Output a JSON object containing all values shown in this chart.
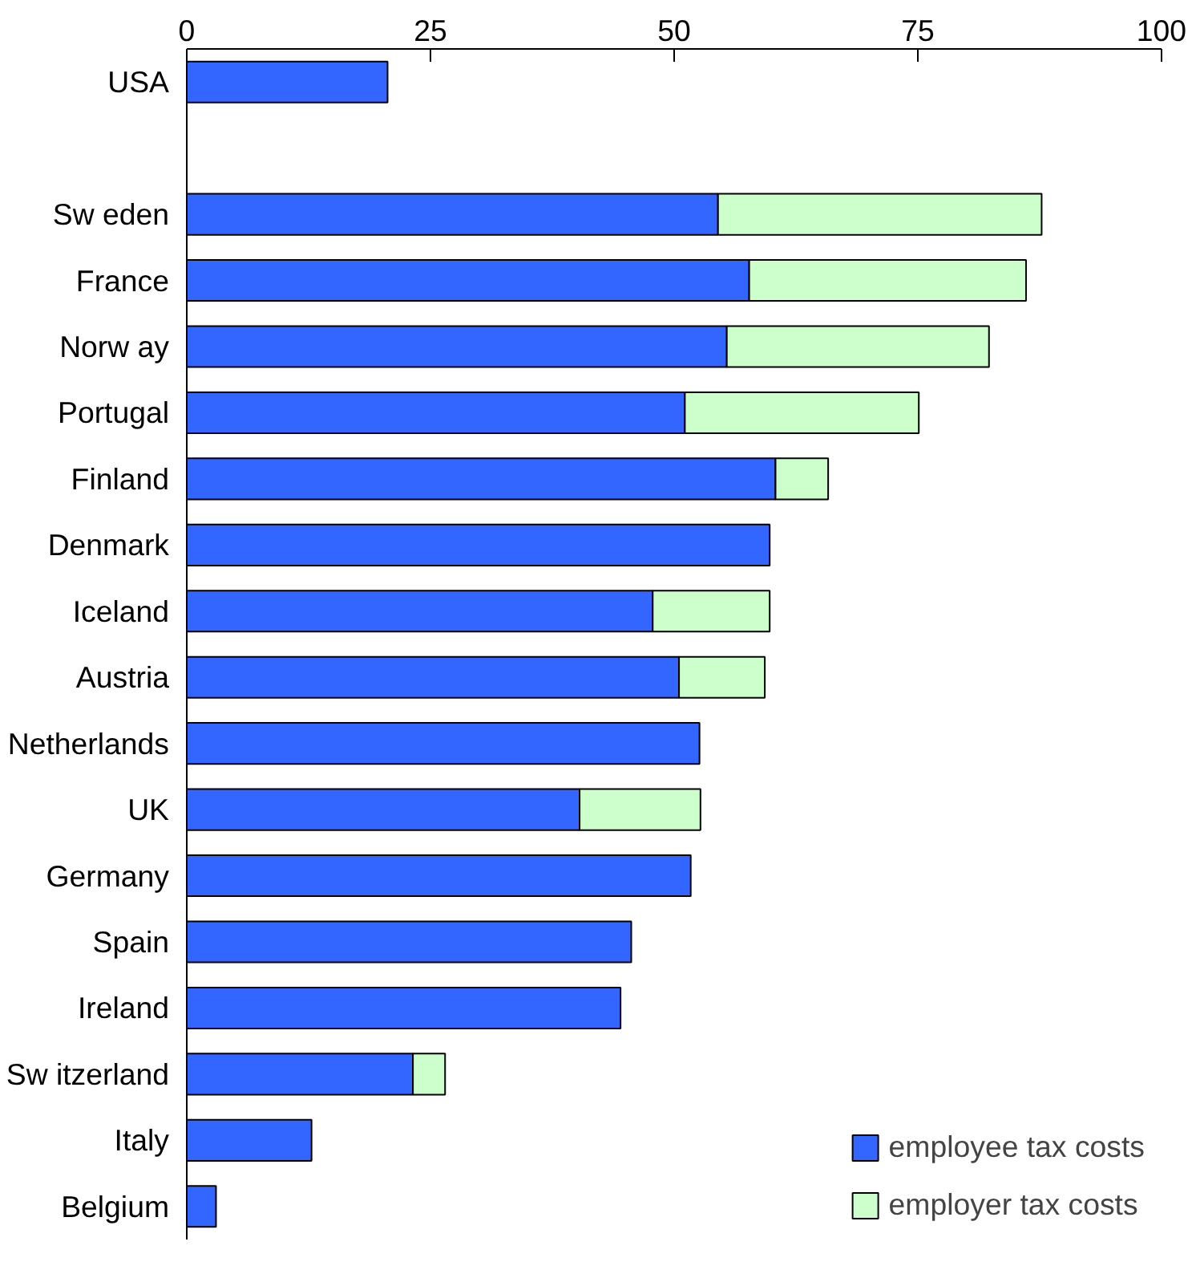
{
  "chart_data": {
    "type": "bar",
    "orientation": "horizontal",
    "stacked": true,
    "categories": [
      "USA",
      null,
      "Sw eden",
      "France",
      "Norw ay",
      "Portugal",
      "Finland",
      "Denmark",
      "Iceland",
      "Austria",
      "Netherlands",
      "UK",
      "Germany",
      "Spain",
      "Ireland",
      "Sw itzerland",
      "Italy",
      "Belgium"
    ],
    "series": [
      {
        "name": "employee tax costs",
        "color": "#3366ff",
        "values": [
          20.6,
          null,
          54.5,
          57.7,
          55.4,
          51.1,
          60.4,
          59.8,
          47.8,
          50.5,
          52.6,
          40.3,
          51.7,
          45.6,
          44.5,
          23.2,
          12.8,
          3.0
        ]
      },
      {
        "name": "employer tax costs",
        "color": "#ccffcc",
        "values": [
          null,
          null,
          33.2,
          28.4,
          26.9,
          24.0,
          5.4,
          null,
          12.0,
          8.8,
          null,
          12.4,
          null,
          null,
          null,
          3.3,
          null,
          null
        ]
      }
    ],
    "xlim": [
      0,
      100
    ],
    "xticks": [
      0,
      25,
      50,
      75,
      100
    ],
    "grid": false,
    "legend": "bottom right"
  }
}
